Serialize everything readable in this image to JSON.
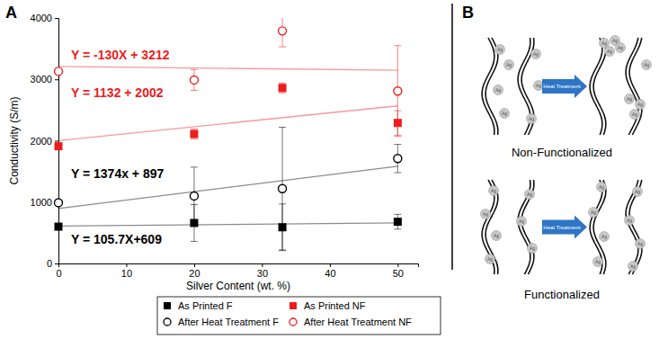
{
  "chart_data": {
    "type": "scatter",
    "x_label": "Silver Content (wt. %)",
    "y_label": "Conductivity (S/m)",
    "x": [
      0,
      20,
      33,
      50
    ],
    "xlim": [
      0,
      53
    ],
    "xticks": [
      0,
      10,
      20,
      30,
      40,
      50
    ],
    "ylim": [
      0,
      4000
    ],
    "yticks": [
      0,
      1000,
      2000,
      3000,
      4000
    ],
    "legend": "bottom",
    "series": [
      {
        "name": "As Printed F",
        "color": "#000000",
        "marker": "square",
        "values": [
          600,
          660,
          590,
          680
        ],
        "errors": [
          30,
          300,
          380,
          120
        ]
      },
      {
        "name": "As Printed NF",
        "color": "#ee1c1c",
        "marker": "square",
        "values": [
          1910,
          2110,
          2860,
          2290
        ],
        "errors": [
          40,
          80,
          80,
          200
        ]
      },
      {
        "name": "After Heat Treatment F",
        "color": "#000000",
        "marker": "circle-open",
        "values": [
          990,
          1100,
          1220,
          1710
        ],
        "errors": [
          30,
          470,
          1000,
          230
        ]
      },
      {
        "name": "After Heat Treatment NF",
        "color": "#ee1c1c",
        "marker": "circle-open",
        "values": [
          3130,
          2990,
          3790,
          2810
        ],
        "errors": [
          30,
          170,
          260,
          740
        ]
      }
    ],
    "trendlines": [
      {
        "label": "Y = -130X + 3212",
        "color": "#ee1c1c",
        "x": [
          0,
          50
        ],
        "values": [
          3212,
          3147
        ]
      },
      {
        "label": "Y = 1132 + 2002",
        "color": "#ee1c1c",
        "x": [
          0,
          50
        ],
        "values": [
          2002,
          2568
        ]
      },
      {
        "label": "Y = 1374x + 897",
        "color": "#000000",
        "x": [
          0,
          50
        ],
        "values": [
          897,
          1584
        ]
      },
      {
        "label": "Y = 105.7X+609",
        "color": "#000000",
        "x": [
          0,
          50
        ],
        "values": [
          609,
          662
        ]
      }
    ]
  },
  "panel_labels": [
    "A",
    "B"
  ],
  "diagram": {
    "arrow_label": "Heat Treatment",
    "particle_label": "Ag",
    "rows": [
      {
        "caption": "Non-Functionalized"
      },
      {
        "caption": "Functionalized"
      }
    ]
  }
}
